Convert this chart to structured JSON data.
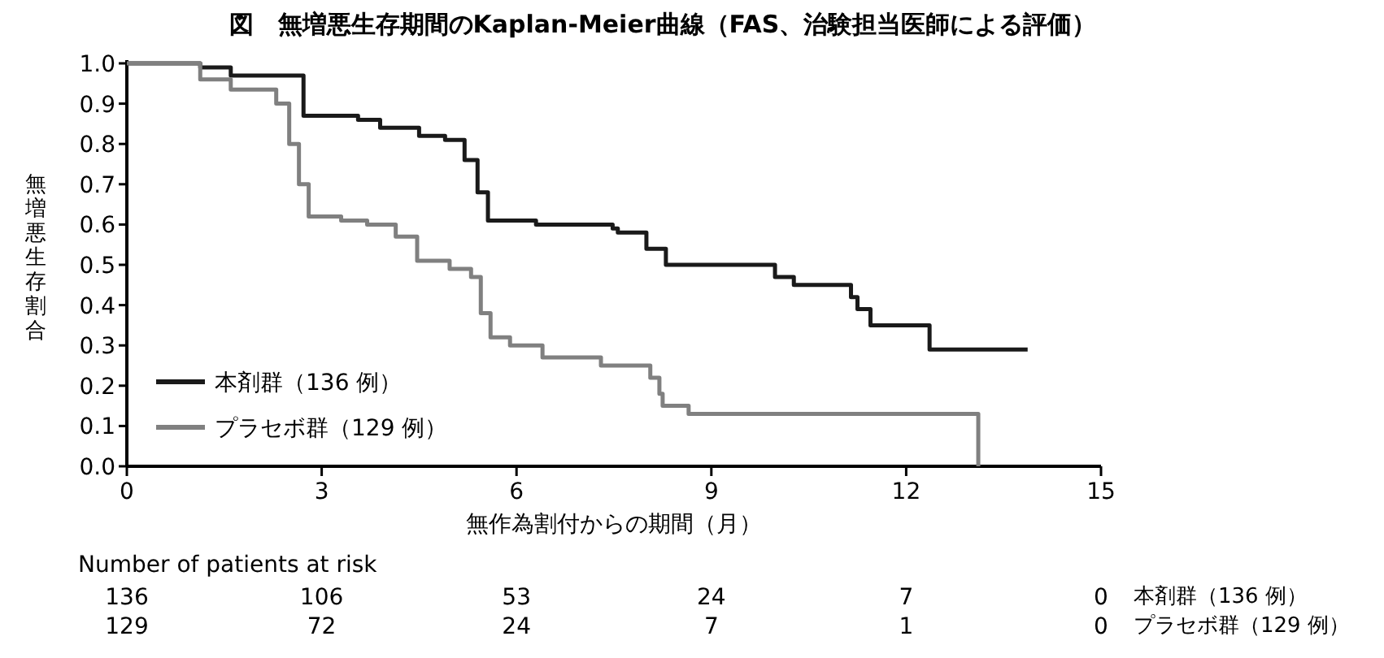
{
  "chart_data": {
    "type": "step",
    "title": "図　無増悪生存期間のKaplan-Meier曲線（FAS、治験担当医師による評価）",
    "xlabel": "無作為割付からの期間（月）",
    "ylabel": "無増悪生存割合",
    "xlim": [
      0,
      15
    ],
    "xticks": [
      0,
      3,
      6,
      9,
      12,
      15
    ],
    "ylim": [
      0,
      1
    ],
    "yticks": [
      {
        "value": 0,
        "label": "0.0"
      },
      {
        "value": 0.1,
        "label": "0.1"
      },
      {
        "value": 0.2,
        "label": "0.2"
      },
      {
        "value": 0.3,
        "label": "0.3"
      },
      {
        "value": 0.4,
        "label": "0.4"
      },
      {
        "value": 0.5,
        "label": "0.5"
      },
      {
        "value": 0.6,
        "label": "0.6"
      },
      {
        "value": 0.7,
        "label": "0.7"
      },
      {
        "value": 0.8,
        "label": "0.8"
      },
      {
        "value": 0.9,
        "label": "0.9"
      },
      {
        "value": 1,
        "label": "1.0"
      }
    ],
    "grid": false,
    "legend": "bottom left",
    "line_style": "solid",
    "series": [
      {
        "name": "本剤群（136 例）",
        "color": "#1a1a1a",
        "x": [
          0,
          1.13,
          1.6,
          2.72,
          3.56,
          3.9,
          4.5,
          4.9,
          5.2,
          5.4,
          5.56,
          6.3,
          7.48,
          7.56,
          8.0,
          8.3,
          9.98,
          10.27,
          11.15,
          11.25,
          11.45,
          12.36,
          13.87
        ],
        "values": [
          1,
          0.99,
          0.97,
          0.87,
          0.86,
          0.84,
          0.82,
          0.81,
          0.76,
          0.68,
          0.61,
          0.6,
          0.59,
          0.58,
          0.54,
          0.5,
          0.47,
          0.45,
          0.42,
          0.39,
          0.35,
          0.29,
          0.29
        ]
      },
      {
        "name": "プラセボ群（129 例）",
        "color": "#808080",
        "x": [
          0,
          1.13,
          1.6,
          2.3,
          2.5,
          2.65,
          2.8,
          3.3,
          3.7,
          4.14,
          4.47,
          4.97,
          5.3,
          5.45,
          5.6,
          5.9,
          6.4,
          7.3,
          7.64,
          8.06,
          8.2,
          8.25,
          8.65,
          13.11
        ],
        "values": [
          1,
          0.96,
          0.935,
          0.9,
          0.8,
          0.7,
          0.62,
          0.61,
          0.6,
          0.57,
          0.51,
          0.49,
          0.47,
          0.38,
          0.32,
          0.3,
          0.27,
          0.25,
          0.25,
          0.22,
          0.18,
          0.15,
          0.13,
          0
        ]
      }
    ],
    "annotations": [
      "Number of patients at risk",
      "136",
      "106",
      "53",
      "24",
      "7",
      "0",
      "129",
      "72",
      "24",
      "7",
      "1",
      "0",
      "本剤群（136 例）",
      "プラセボ群（129 例）"
    ]
  }
}
